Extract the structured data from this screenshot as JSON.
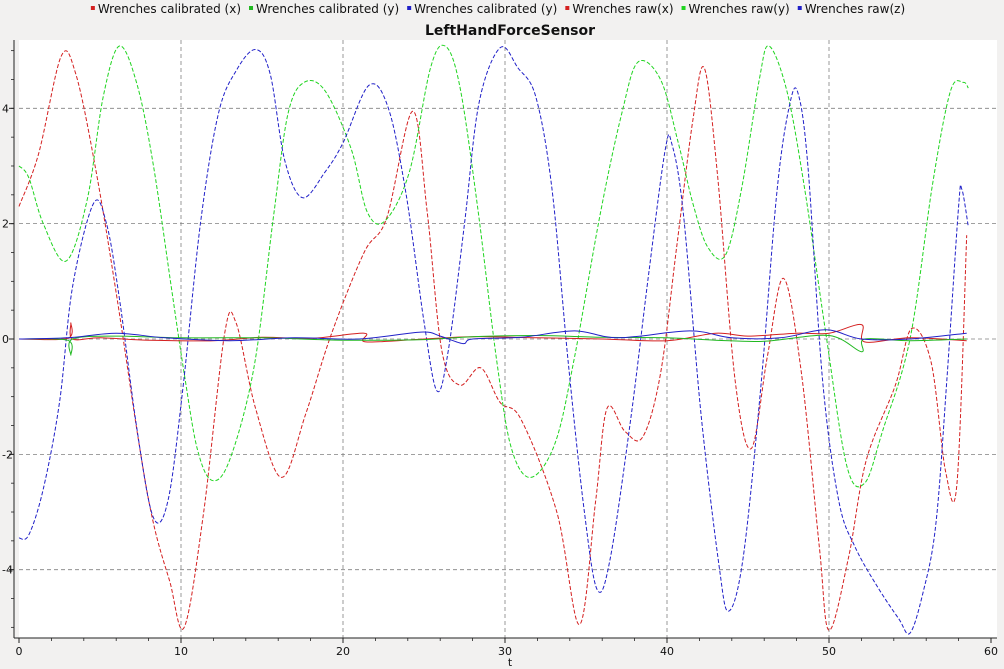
{
  "chart_data": {
    "type": "line",
    "title": "LeftHandForceSensor",
    "xlabel": "t",
    "ylabel": "",
    "xlim": [
      0,
      60
    ],
    "ylim": [
      -5.15,
      5.15
    ],
    "x_ticks": [
      0,
      10,
      20,
      30,
      40,
      50,
      60
    ],
    "y_ticks": [
      -4,
      -2,
      0,
      2,
      4
    ],
    "grid": true,
    "legend_position": "top",
    "series": [
      {
        "name": "Wrenches calibrated (x)",
        "color": "#d42020",
        "style": "solid",
        "points": [
          [
            0,
            0
          ],
          [
            3,
            0.01
          ],
          [
            3.2,
            0.28
          ],
          [
            3.3,
            0
          ],
          [
            5,
            0.02
          ],
          [
            8,
            -0.02
          ],
          [
            12,
            -0.03
          ],
          [
            15,
            0.03
          ],
          [
            18,
            0.01
          ],
          [
            21.3,
            0.1
          ],
          [
            21.4,
            -0.05
          ],
          [
            25,
            0
          ],
          [
            28,
            0.04
          ],
          [
            32,
            0.02
          ],
          [
            36,
            0
          ],
          [
            40,
            -0.03
          ],
          [
            43,
            0.1
          ],
          [
            45,
            0.05
          ],
          [
            48,
            0.1
          ],
          [
            50,
            0.1
          ],
          [
            52,
            0.25
          ],
          [
            52.2,
            -0.05
          ],
          [
            55,
            0.02
          ],
          [
            58.5,
            -0.03
          ]
        ]
      },
      {
        "name": "Wrenches calibrated (y)",
        "color": "#20b820",
        "style": "solid",
        "points": [
          [
            0,
            0
          ],
          [
            3,
            -0.02
          ],
          [
            3.2,
            -0.28
          ],
          [
            3.3,
            0
          ],
          [
            6,
            0.05
          ],
          [
            10,
            0.02
          ],
          [
            15,
            0.02
          ],
          [
            20,
            -0.02
          ],
          [
            25,
            -0.01
          ],
          [
            28,
            0.04
          ],
          [
            32,
            0.06
          ],
          [
            36,
            0.03
          ],
          [
            40,
            0.02
          ],
          [
            43,
            -0.02
          ],
          [
            46,
            -0.04
          ],
          [
            50,
            0.06
          ],
          [
            52,
            -0.22
          ],
          [
            52.2,
            0
          ],
          [
            55,
            -0.03
          ],
          [
            58.5,
            0
          ]
        ]
      },
      {
        "name": "Wrenches calibrated (y)",
        "color": "#2020c8",
        "style": "solid",
        "points": [
          [
            0,
            0
          ],
          [
            3,
            0.02
          ],
          [
            6,
            0.1
          ],
          [
            9,
            0.02
          ],
          [
            13,
            -0.03
          ],
          [
            17,
            0.02
          ],
          [
            21,
            0
          ],
          [
            24.8,
            0.12
          ],
          [
            26,
            0.05
          ],
          [
            27.4,
            -0.08
          ],
          [
            28,
            0
          ],
          [
            31,
            0.03
          ],
          [
            34.3,
            0.14
          ],
          [
            37,
            0.02
          ],
          [
            41.4,
            0.14
          ],
          [
            44,
            0.02
          ],
          [
            47,
            0.02
          ],
          [
            49.8,
            0.16
          ],
          [
            52,
            0
          ],
          [
            55,
            0
          ],
          [
            58.5,
            0.1
          ]
        ]
      },
      {
        "name": "Wrenches raw(x)",
        "color": "#d42020",
        "style": "dashed",
        "points": [
          [
            0,
            2.3
          ],
          [
            1.2,
            3.2
          ],
          [
            2.6,
            4.9
          ],
          [
            3.5,
            4.6
          ],
          [
            4.7,
            3
          ],
          [
            6,
            0.8
          ],
          [
            7.4,
            -1.8
          ],
          [
            8.3,
            -3.2
          ],
          [
            9.3,
            -4.2
          ],
          [
            10.2,
            -5.0
          ],
          [
            11.4,
            -3
          ],
          [
            12.7,
            0.1
          ],
          [
            13.4,
            0.28
          ],
          [
            14.6,
            -1.2
          ],
          [
            16.2,
            -2.4
          ],
          [
            17.7,
            -1.3
          ],
          [
            19.3,
            0.1
          ],
          [
            21.3,
            1.5
          ],
          [
            22.7,
            2.1
          ],
          [
            24.3,
            3.95
          ],
          [
            25.2,
            2.2
          ],
          [
            26.1,
            -0.2
          ],
          [
            27.2,
            -0.8
          ],
          [
            28.5,
            -0.5
          ],
          [
            29.7,
            -1.1
          ],
          [
            31,
            -1.4
          ],
          [
            33.2,
            -3
          ],
          [
            34.6,
            -4.95
          ],
          [
            35.6,
            -2.8
          ],
          [
            36.3,
            -1.2
          ],
          [
            37.4,
            -1.6
          ],
          [
            38.5,
            -1.7
          ],
          [
            39.6,
            -0.6
          ],
          [
            40.6,
            1.6
          ],
          [
            41.6,
            3.8
          ],
          [
            42.3,
            4.7
          ],
          [
            43.1,
            2.9
          ],
          [
            44.2,
            -0.7
          ],
          [
            45.2,
            -1.9
          ],
          [
            46.2,
            -0.3
          ],
          [
            47.2,
            1.05
          ],
          [
            48.3,
            -0.6
          ],
          [
            49.4,
            -3.6
          ],
          [
            50,
            -5.05
          ],
          [
            51.2,
            -3.8
          ],
          [
            52.3,
            -2.1
          ],
          [
            54.1,
            -0.8
          ],
          [
            55.1,
            0.18
          ],
          [
            56.3,
            -0.4
          ],
          [
            57.2,
            -2.3
          ],
          [
            57.9,
            -2.5
          ],
          [
            58.5,
            1.8
          ]
        ]
      },
      {
        "name": "Wrenches raw(y)",
        "color": "#20d420",
        "style": "dashed",
        "points": [
          [
            0,
            3
          ],
          [
            0.6,
            2.8
          ],
          [
            1.5,
            2
          ],
          [
            2.9,
            1.35
          ],
          [
            4.2,
            2.4
          ],
          [
            5.2,
            4.2
          ],
          [
            6.2,
            5.08
          ],
          [
            7.3,
            4.4
          ],
          [
            8.3,
            3
          ],
          [
            9.4,
            0.9
          ],
          [
            10.2,
            -0.6
          ],
          [
            11,
            -1.9
          ],
          [
            11.9,
            -2.45
          ],
          [
            13,
            -2.1
          ],
          [
            14.5,
            -0.5
          ],
          [
            15.7,
            2.1
          ],
          [
            16.6,
            3.9
          ],
          [
            17.6,
            4.45
          ],
          [
            18.9,
            4.3
          ],
          [
            20.5,
            3.3
          ],
          [
            21.5,
            2.2
          ],
          [
            22.6,
            2.05
          ],
          [
            24.1,
            2.9
          ],
          [
            25.4,
            4.7
          ],
          [
            26.3,
            5.08
          ],
          [
            27.2,
            4.4
          ],
          [
            28.3,
            2.3
          ],
          [
            29.5,
            -0.4
          ],
          [
            30.4,
            -1.9
          ],
          [
            31.6,
            -2.4
          ],
          [
            33.1,
            -1.8
          ],
          [
            34.3,
            -0.3
          ],
          [
            35.9,
            2.2
          ],
          [
            37.2,
            3.9
          ],
          [
            38.2,
            4.8
          ],
          [
            39.6,
            4.5
          ],
          [
            40.7,
            3.4
          ],
          [
            41.6,
            2.35
          ],
          [
            42.5,
            1.6
          ],
          [
            43.6,
            1.45
          ],
          [
            44.6,
            2.6
          ],
          [
            45.7,
            4.5
          ],
          [
            46.3,
            5.08
          ],
          [
            47.4,
            4.3
          ],
          [
            48.5,
            2.6
          ],
          [
            49.8,
            0.1
          ],
          [
            51.1,
            -2.2
          ],
          [
            52.2,
            -2.5
          ],
          [
            53.3,
            -1.6
          ],
          [
            55,
            0
          ],
          [
            56.4,
            2.7
          ],
          [
            57.5,
            4.3
          ],
          [
            58.3,
            4.45
          ],
          [
            58.6,
            4.35
          ]
        ]
      },
      {
        "name": "Wrenches raw(z)",
        "color": "#2020c8",
        "style": "dashed",
        "points": [
          [
            0,
            -3.45
          ],
          [
            0.6,
            -3.4
          ],
          [
            1.5,
            -2.6
          ],
          [
            2.5,
            -1.1
          ],
          [
            3.3,
            0.9
          ],
          [
            4.6,
            2.35
          ],
          [
            5.4,
            2
          ],
          [
            6.2,
            0.7
          ],
          [
            7.3,
            -1.6
          ],
          [
            8.3,
            -3.1
          ],
          [
            9.2,
            -2.8
          ],
          [
            10.1,
            -0.9
          ],
          [
            11.2,
            2
          ],
          [
            12.3,
            3.9
          ],
          [
            13.4,
            4.65
          ],
          [
            14.6,
            5.02
          ],
          [
            15.5,
            4.6
          ],
          [
            16.4,
            3.1
          ],
          [
            17.5,
            2.45
          ],
          [
            18.9,
            2.9
          ],
          [
            20,
            3.4
          ],
          [
            21.6,
            4.4
          ],
          [
            22.8,
            4
          ],
          [
            23.9,
            2.5
          ],
          [
            25,
            0.3
          ],
          [
            25.8,
            -0.9
          ],
          [
            26.5,
            -0.2
          ],
          [
            27.5,
            2
          ],
          [
            28.4,
            4.1
          ],
          [
            29.7,
            5.05
          ],
          [
            30.8,
            4.7
          ],
          [
            31.9,
            4.2
          ],
          [
            32.9,
            2.6
          ],
          [
            33.9,
            -0.4
          ],
          [
            34.9,
            -3
          ],
          [
            35.7,
            -4.35
          ],
          [
            36.5,
            -3.8
          ],
          [
            37.8,
            -1.3
          ],
          [
            38.9,
            1.2
          ],
          [
            39.9,
            3.3
          ],
          [
            40.3,
            3.38
          ],
          [
            41,
            2.2
          ],
          [
            42.1,
            -1.3
          ],
          [
            43.2,
            -3.9
          ],
          [
            43.8,
            -4.72
          ],
          [
            44.7,
            -3.8
          ],
          [
            45.8,
            -0.8
          ],
          [
            46.8,
            2.6
          ],
          [
            47.6,
            4.1
          ],
          [
            48.1,
            4.25
          ],
          [
            48.7,
            3
          ],
          [
            49.6,
            -0.7
          ],
          [
            50.6,
            -2.8
          ],
          [
            51.6,
            -3.6
          ],
          [
            53,
            -4.3
          ],
          [
            54.3,
            -4.85
          ],
          [
            55,
            -5.1
          ],
          [
            55.8,
            -4.4
          ],
          [
            56.6,
            -3.2
          ],
          [
            57.3,
            -0.6
          ],
          [
            58,
            2.3
          ],
          [
            58.2,
            2.6
          ],
          [
            58.6,
            1.95
          ]
        ]
      }
    ]
  }
}
